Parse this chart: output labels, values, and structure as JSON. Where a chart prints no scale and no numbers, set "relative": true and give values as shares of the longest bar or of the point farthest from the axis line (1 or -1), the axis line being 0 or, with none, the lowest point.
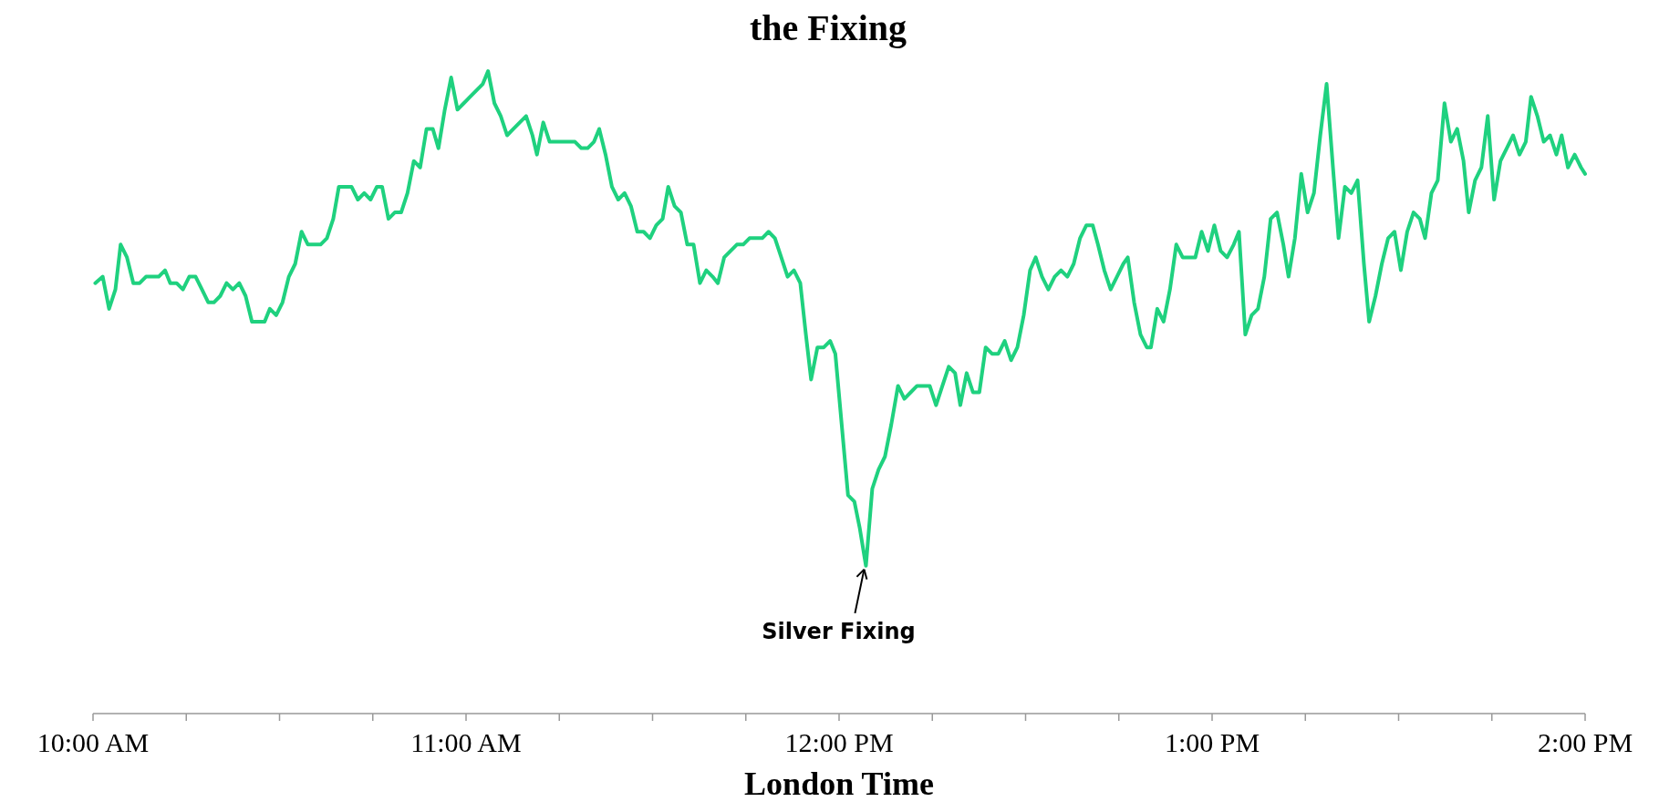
{
  "chart_data": {
    "type": "line",
    "title": "the Fixing",
    "xlabel": "London Time",
    "relative": true,
    "xlim": [
      10,
      14
    ],
    "xticks": [
      {
        "value": 10,
        "label": "10:00 AM"
      },
      {
        "value": 10.25,
        "label": null
      },
      {
        "value": 10.5,
        "label": null
      },
      {
        "value": 10.75,
        "label": null
      },
      {
        "value": 11,
        "label": "11:00 AM"
      },
      {
        "value": 11.25,
        "label": null
      },
      {
        "value": 11.5,
        "label": null
      },
      {
        "value": 11.75,
        "label": null
      },
      {
        "value": 12,
        "label": "12:00 PM"
      },
      {
        "value": 12.25,
        "label": null
      },
      {
        "value": 12.5,
        "label": null
      },
      {
        "value": 12.75,
        "label": null
      },
      {
        "value": 13,
        "label": "1:00 PM"
      },
      {
        "value": 13.25,
        "label": null
      },
      {
        "value": 13.5,
        "label": null
      },
      {
        "value": 13.75,
        "label": null
      },
      {
        "value": 14,
        "label": "2:00 PM"
      }
    ],
    "annotations": [
      {
        "text": "Silver Fixing",
        "x": 12.072,
        "y": 0.23
      }
    ],
    "series": [
      {
        "color": "#1fd17f",
        "x": [
          10.006,
          10.026,
          10.043,
          10.06,
          10.074,
          10.091,
          10.108,
          10.125,
          10.142,
          10.159,
          10.176,
          10.193,
          10.207,
          10.224,
          10.241,
          10.258,
          10.275,
          10.292,
          10.309,
          10.324,
          10.341,
          10.358,
          10.375,
          10.392,
          10.409,
          10.426,
          10.443,
          10.46,
          10.474,
          10.491,
          10.508,
          10.525,
          10.542,
          10.559,
          10.576,
          10.593,
          10.61,
          10.627,
          10.644,
          10.659,
          10.676,
          10.693,
          10.71,
          10.727,
          10.744,
          10.761,
          10.775,
          10.792,
          10.809,
          10.826,
          10.843,
          10.86,
          10.877,
          10.894,
          10.911,
          10.926,
          10.943,
          10.96,
          10.977,
          10.994,
          11.011,
          11.028,
          11.045,
          11.059,
          11.076,
          11.093,
          11.11,
          11.127,
          11.144,
          11.161,
          11.178,
          11.19,
          11.207,
          11.224,
          11.241,
          11.275,
          11.292,
          11.309,
          11.326,
          11.343,
          11.357,
          11.374,
          11.391,
          11.408,
          11.425,
          11.442,
          11.459,
          11.476,
          11.493,
          11.51,
          11.527,
          11.542,
          11.559,
          11.576,
          11.593,
          11.61,
          11.627,
          11.644,
          11.661,
          11.675,
          11.692,
          11.709,
          11.726,
          11.743,
          11.76,
          11.777,
          11.794,
          11.811,
          11.828,
          11.845,
          11.862,
          11.879,
          11.896,
          11.911,
          11.925,
          11.942,
          11.959,
          11.976,
          11.99,
          12.007,
          12.024,
          12.041,
          12.055,
          12.072,
          12.089,
          12.106,
          12.123,
          12.14,
          12.158,
          12.175,
          12.192,
          12.209,
          12.226,
          12.243,
          12.26,
          12.277,
          12.294,
          12.311,
          12.325,
          12.342,
          12.359,
          12.376,
          12.393,
          12.41,
          12.427,
          12.444,
          12.461,
          12.478,
          12.495,
          12.512,
          12.527,
          12.544,
          12.561,
          12.578,
          12.595,
          12.612,
          12.629,
          12.646,
          12.663,
          12.68,
          12.694,
          12.711,
          12.728,
          12.745,
          12.762,
          12.774,
          12.791,
          12.808,
          12.825,
          12.836,
          12.853,
          12.87,
          12.887,
          12.904,
          12.921,
          12.955,
          12.972,
          12.989,
          13.006,
          13.023,
          13.04,
          13.058,
          13.072,
          13.089,
          13.106,
          13.123,
          13.14,
          13.157,
          13.174,
          13.191,
          13.205,
          13.222,
          13.239,
          13.256,
          13.273,
          13.29,
          13.307,
          13.324,
          13.339,
          13.356,
          13.373,
          13.39,
          13.407,
          13.421,
          13.438,
          13.455,
          13.472,
          13.489,
          13.506,
          13.523,
          13.54,
          13.557,
          13.571,
          13.588,
          13.605,
          13.623,
          13.64,
          13.657,
          13.674,
          13.688,
          13.705,
          13.722,
          13.739,
          13.756,
          13.773,
          13.79,
          13.807,
          13.824,
          13.841,
          13.855,
          13.872,
          13.889,
          13.906,
          13.923,
          13.937,
          13.954,
          13.972,
          13.989,
          14.0
        ],
        "values": [
          0.67,
          0.68,
          0.63,
          0.66,
          0.73,
          0.71,
          0.67,
          0.67,
          0.68,
          0.68,
          0.68,
          0.69,
          0.67,
          0.67,
          0.66,
          0.68,
          0.68,
          0.66,
          0.64,
          0.64,
          0.65,
          0.67,
          0.66,
          0.67,
          0.65,
          0.61,
          0.61,
          0.61,
          0.63,
          0.62,
          0.64,
          0.68,
          0.7,
          0.75,
          0.73,
          0.73,
          0.73,
          0.74,
          0.77,
          0.82,
          0.82,
          0.82,
          0.8,
          0.81,
          0.8,
          0.82,
          0.82,
          0.77,
          0.78,
          0.78,
          0.81,
          0.86,
          0.85,
          0.91,
          0.91,
          0.88,
          0.94,
          0.99,
          0.94,
          0.95,
          0.96,
          0.97,
          0.98,
          1,
          0.95,
          0.93,
          0.9,
          0.91,
          0.92,
          0.93,
          0.9,
          0.87,
          0.92,
          0.89,
          0.89,
          0.89,
          0.89,
          0.88,
          0.88,
          0.89,
          0.91,
          0.87,
          0.82,
          0.8,
          0.81,
          0.79,
          0.75,
          0.75,
          0.74,
          0.76,
          0.77,
          0.82,
          0.79,
          0.78,
          0.73,
          0.73,
          0.67,
          0.69,
          0.68,
          0.67,
          0.71,
          0.72,
          0.73,
          0.73,
          0.74,
          0.74,
          0.74,
          0.75,
          0.74,
          0.71,
          0.68,
          0.69,
          0.67,
          0.59,
          0.52,
          0.57,
          0.57,
          0.58,
          0.56,
          0.45,
          0.34,
          0.33,
          0.29,
          0.23,
          0.35,
          0.38,
          0.4,
          0.45,
          0.51,
          0.49,
          0.5,
          0.51,
          0.51,
          0.51,
          0.48,
          0.51,
          0.54,
          0.53,
          0.48,
          0.53,
          0.5,
          0.5,
          0.57,
          0.56,
          0.56,
          0.58,
          0.55,
          0.57,
          0.62,
          0.69,
          0.71,
          0.68,
          0.66,
          0.68,
          0.69,
          0.68,
          0.7,
          0.74,
          0.76,
          0.76,
          0.73,
          0.69,
          0.66,
          0.68,
          0.7,
          0.71,
          0.64,
          0.59,
          0.57,
          0.57,
          0.63,
          0.61,
          0.66,
          0.73,
          0.71,
          0.71,
          0.75,
          0.72,
          0.76,
          0.72,
          0.71,
          0.73,
          0.75,
          0.59,
          0.62,
          0.63,
          0.68,
          0.77,
          0.78,
          0.73,
          0.68,
          0.74,
          0.84,
          0.78,
          0.81,
          0.9,
          0.98,
          0.85,
          0.74,
          0.82,
          0.81,
          0.83,
          0.7,
          0.61,
          0.65,
          0.7,
          0.74,
          0.75,
          0.69,
          0.75,
          0.78,
          0.77,
          0.74,
          0.81,
          0.83,
          0.95,
          0.89,
          0.91,
          0.86,
          0.78,
          0.83,
          0.85,
          0.93,
          0.8,
          0.86,
          0.88,
          0.9,
          0.87,
          0.89,
          0.96,
          0.93,
          0.89,
          0.9,
          0.87,
          0.9,
          0.85,
          0.87,
          0.85,
          0.84
        ]
      }
    ]
  }
}
